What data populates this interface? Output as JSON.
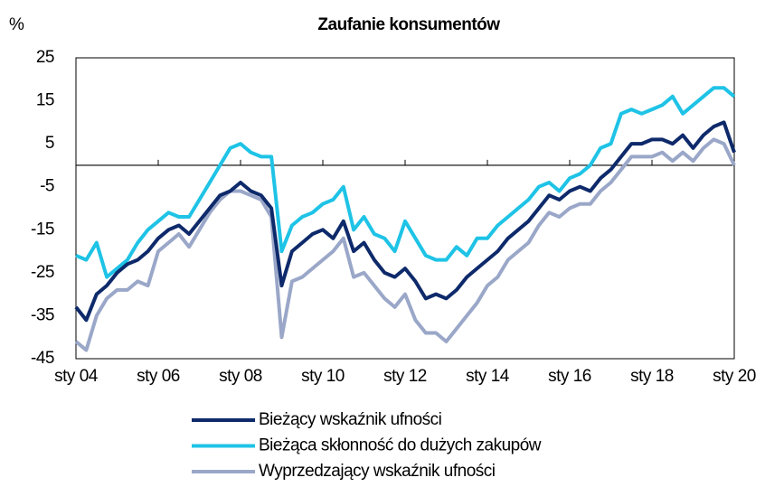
{
  "chart_data": {
    "type": "line",
    "title": "Zaufanie konsumentów",
    "y_label": "%",
    "categories": [
      "sty 04",
      null,
      null,
      null,
      null,
      null,
      null,
      null,
      "sty 06",
      null,
      null,
      null,
      null,
      null,
      null,
      null,
      "sty 08",
      null,
      null,
      null,
      null,
      null,
      null,
      null,
      "sty 10",
      null,
      null,
      null,
      null,
      null,
      null,
      null,
      "sty 12",
      null,
      null,
      null,
      null,
      null,
      null,
      null,
      "sty 14",
      null,
      null,
      null,
      null,
      null,
      null,
      null,
      "sty 16",
      null,
      null,
      null,
      null,
      null,
      null,
      null,
      "sty 18",
      null,
      null,
      null,
      null,
      null,
      null,
      null,
      "sty 20"
    ],
    "series": [
      {
        "name": "Bieżący wskaźnik ufności",
        "color": "#0e2a6b",
        "values": [
          -33,
          -36,
          -30,
          -28,
          -25,
          -23,
          -22,
          -20,
          -17,
          -15,
          -14,
          -16,
          -13,
          -10,
          -7,
          -6,
          -4,
          -6,
          -7,
          -10,
          -28,
          -20,
          -18,
          -16,
          -15,
          -17,
          -13,
          -20,
          -18,
          -22,
          -25,
          -26,
          -24,
          -27,
          -31,
          -30,
          -31,
          -29,
          -26,
          -24,
          -22,
          -20,
          -17,
          -15,
          -13,
          -10,
          -7,
          -8,
          -6,
          -5,
          -6,
          -3,
          -1,
          2,
          5,
          5,
          6,
          6,
          5,
          7,
          4,
          7,
          9,
          10,
          3
        ]
      },
      {
        "name": "Bieżąca skłonność do dużych zakupów",
        "color": "#1ec3e6",
        "values": [
          -21,
          -22,
          -18,
          -26,
          -24,
          -22,
          -18,
          -15,
          -13,
          -11,
          -12,
          -12,
          -8,
          -4,
          0,
          4,
          5,
          3,
          2,
          2,
          -20,
          -14,
          -12,
          -11,
          -9,
          -8,
          -5,
          -15,
          -12,
          -16,
          -17,
          -20,
          -13,
          -17,
          -21,
          -22,
          -22,
          -19,
          -21,
          -17,
          -17,
          -14,
          -12,
          -10,
          -8,
          -5,
          -4,
          -6,
          -3,
          -2,
          0,
          4,
          5,
          12,
          13,
          12,
          13,
          14,
          16,
          12,
          14,
          16,
          18,
          18,
          16
        ]
      },
      {
        "name": "Wyprzedzający wskaźnik ufności",
        "color": "#9aa7c8",
        "values": [
          -41,
          -43,
          -35,
          -31,
          -29,
          -29,
          -27,
          -28,
          -20,
          -18,
          -16,
          -19,
          -15,
          -11,
          -8,
          -6,
          -6,
          -7,
          -8,
          -12,
          -40,
          -27,
          -26,
          -24,
          -22,
          -20,
          -17,
          -26,
          -25,
          -28,
          -31,
          -33,
          -30,
          -36,
          -39,
          -39,
          -41,
          -38,
          -35,
          -32,
          -28,
          -26,
          -22,
          -20,
          -18,
          -14,
          -11,
          -12,
          -10,
          -9,
          -9,
          -6,
          -4,
          -1,
          2,
          2,
          2,
          3,
          1,
          3,
          1,
          4,
          6,
          5,
          0
        ]
      }
    ],
    "ylim": [
      -45,
      25
    ],
    "yticks": [
      -45,
      -35,
      -25,
      -15,
      -5,
      5,
      15,
      25
    ],
    "baseline": 0
  }
}
